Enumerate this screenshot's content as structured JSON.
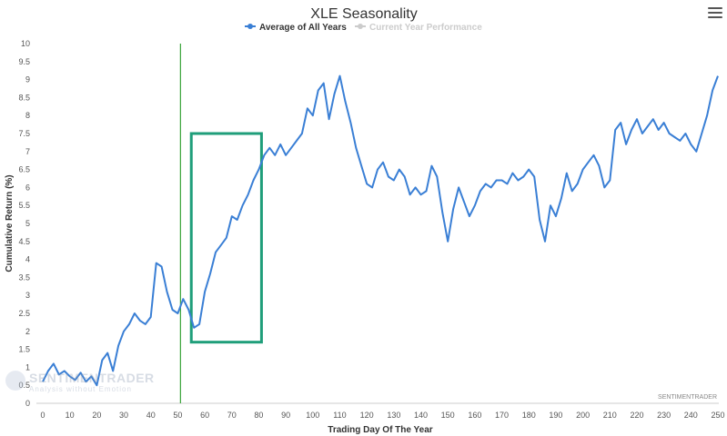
{
  "chart_data": {
    "type": "line",
    "title": "XLE Seasonality",
    "xlabel": "Trading Day Of The Year",
    "ylabel": "Cumulative Return (%)",
    "xlim": [
      0,
      250
    ],
    "ylim": [
      0,
      10
    ],
    "x_ticks": [
      0,
      10,
      20,
      30,
      40,
      50,
      60,
      70,
      80,
      90,
      100,
      110,
      120,
      130,
      140,
      150,
      160,
      170,
      180,
      190,
      200,
      210,
      220,
      230,
      240,
      250
    ],
    "y_ticks": [
      0,
      0.5,
      1,
      1.5,
      2,
      2.5,
      3,
      3.5,
      4,
      4.5,
      5,
      5.5,
      6,
      6.5,
      7,
      7.5,
      8,
      8.5,
      9,
      9.5,
      10
    ],
    "legend": [
      "Average of All Years",
      "Current Year Performance"
    ],
    "legend_position": "top-center",
    "credit": "SENTIMENTRADER",
    "grid": false,
    "series": [
      {
        "name": "Average of All Years",
        "color": "#3a7fd5",
        "x": [
          0,
          2,
          4,
          6,
          8,
          10,
          12,
          14,
          16,
          18,
          20,
          22,
          24,
          26,
          28,
          30,
          32,
          34,
          36,
          38,
          40,
          42,
          44,
          46,
          48,
          50,
          52,
          54,
          56,
          58,
          60,
          62,
          64,
          66,
          68,
          70,
          72,
          74,
          76,
          78,
          80,
          82,
          84,
          86,
          88,
          90,
          92,
          94,
          96,
          98,
          100,
          102,
          104,
          106,
          108,
          110,
          112,
          114,
          116,
          118,
          120,
          122,
          124,
          126,
          128,
          130,
          132,
          134,
          136,
          138,
          140,
          142,
          144,
          146,
          148,
          150,
          152,
          154,
          156,
          158,
          160,
          162,
          164,
          166,
          168,
          170,
          172,
          174,
          176,
          178,
          180,
          182,
          184,
          186,
          188,
          190,
          192,
          194,
          196,
          198,
          200,
          202,
          204,
          206,
          208,
          210,
          212,
          214,
          216,
          218,
          220,
          222,
          224,
          226,
          228,
          230,
          232,
          234,
          236,
          238,
          240,
          242,
          244,
          246,
          248,
          250
        ],
        "values": [
          0.6,
          0.9,
          1.1,
          0.8,
          0.9,
          0.75,
          0.65,
          0.85,
          0.6,
          0.75,
          0.5,
          1.2,
          1.4,
          0.9,
          1.6,
          2.0,
          2.2,
          2.5,
          2.3,
          2.2,
          2.4,
          3.9,
          3.8,
          3.1,
          2.6,
          2.5,
          2.9,
          2.6,
          2.1,
          2.2,
          3.1,
          3.6,
          4.2,
          4.4,
          4.6,
          5.2,
          5.1,
          5.5,
          5.8,
          6.2,
          6.5,
          6.9,
          7.1,
          6.9,
          7.2,
          6.9,
          7.1,
          7.3,
          7.5,
          8.2,
          8.0,
          8.7,
          8.9,
          7.9,
          8.6,
          9.1,
          8.4,
          7.8,
          7.1,
          6.6,
          6.1,
          6.0,
          6.5,
          6.7,
          6.3,
          6.2,
          6.5,
          6.3,
          5.8,
          6.0,
          5.8,
          5.9,
          6.6,
          6.3,
          5.3,
          4.5,
          5.4,
          6.0,
          5.6,
          5.2,
          5.5,
          5.9,
          6.1,
          6.0,
          6.2,
          6.2,
          6.1,
          6.4,
          6.2,
          6.3,
          6.5,
          6.3,
          5.1,
          4.5,
          5.5,
          5.2,
          5.7,
          6.4,
          5.9,
          6.1,
          6.5,
          6.7,
          6.9,
          6.6,
          6.0,
          6.2,
          7.6,
          7.8,
          7.2,
          7.6,
          7.9,
          7.5,
          7.7,
          7.9,
          7.6,
          7.8,
          7.5,
          7.4,
          7.3,
          7.5,
          7.2,
          7.0,
          7.5,
          8.0,
          8.7,
          9.1
        ]
      },
      {
        "name": "Current Year Performance",
        "color": "#cccccc",
        "x": [],
        "values": []
      }
    ],
    "marker_line": {
      "x": 51,
      "color": "#3aa33a"
    },
    "highlight_box": {
      "x": [
        55,
        81
      ],
      "y": [
        1.7,
        7.5
      ],
      "color": "#1f9e7a"
    }
  },
  "watermark": {
    "brand": "SENTIMENTRADER",
    "tagline": "Analysis without Emotion"
  }
}
